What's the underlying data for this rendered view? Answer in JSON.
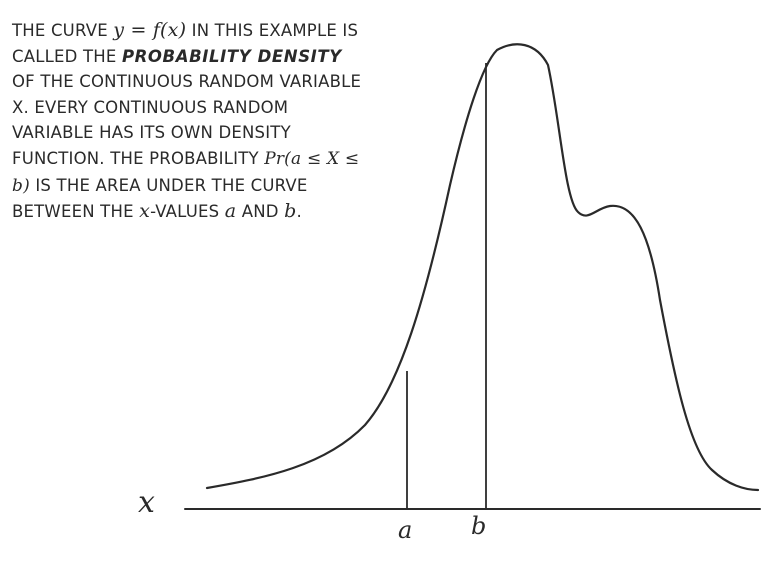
{
  "caption": {
    "t1": "THE CURVE ",
    "m1": "y = f(x)",
    "t2": " IN THIS EXAMPLE IS CALLED THE ",
    "em": "PROBABILITY DENSITY",
    "t3": " OF THE CONTINUOUS RANDOM VARIABLE X. EVERY CONTINUOUS RANDOM VARIABLE HAS ITS OWN DENSITY FUNCTION. THE PROBABILITY ",
    "m2": "Pr(a ≤ X ≤ b)",
    "t4": " IS THE AREA UNDER THE CURVE BETWEEN THE ",
    "m3": "x",
    "t5": "-VALUES ",
    "m4": "a",
    "t6": " AND ",
    "m5": "b",
    "t7": "."
  },
  "axis": {
    "x_label": "x",
    "a_label": "a",
    "b_label": "b"
  },
  "colors": {
    "ink": "#2a2a2a"
  }
}
